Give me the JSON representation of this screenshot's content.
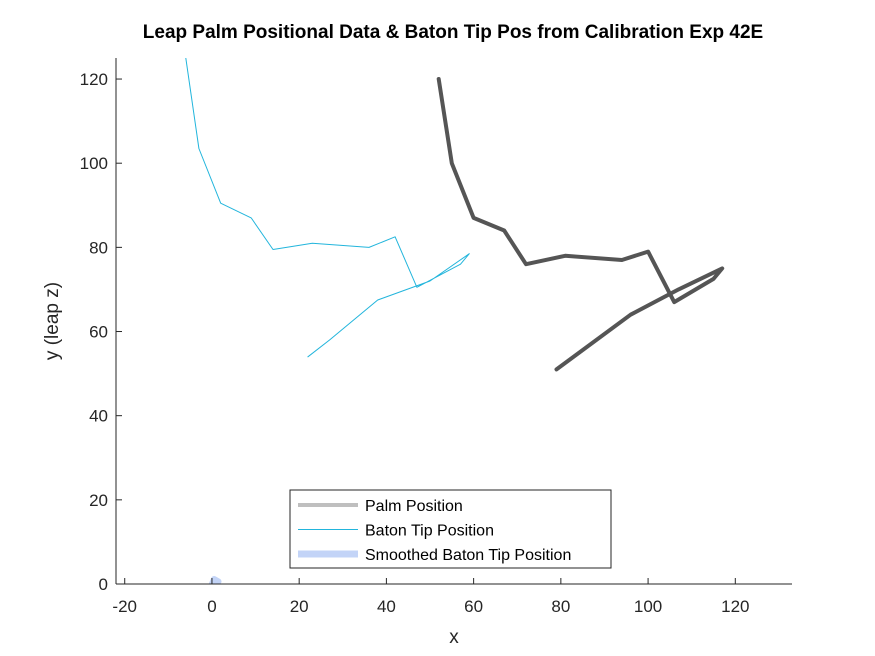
{
  "chart_data": {
    "type": "line",
    "title": "Leap Palm Positional Data & Baton Tip Pos from Calibration Exp 42E",
    "xlabel": "x",
    "ylabel": "y (leap z)",
    "xlim": [
      -22,
      133
    ],
    "ylim": [
      0,
      125
    ],
    "xticks": [
      -20,
      0,
      20,
      40,
      60,
      80,
      100,
      120
    ],
    "yticks": [
      0,
      20,
      40,
      60,
      80,
      100,
      120
    ],
    "grid": false,
    "legend_position": "bottom-center",
    "series": [
      {
        "name": "Palm Position",
        "legend_color": "#bfbfbf",
        "color": "#555555",
        "x": [
          52,
          55,
          60,
          67,
          72,
          81,
          94,
          100,
          106,
          115,
          117,
          107,
          96,
          79
        ],
        "y": [
          120,
          100,
          87,
          84,
          76,
          78,
          77,
          79,
          67,
          72.5,
          75,
          70,
          64,
          51
        ]
      },
      {
        "name": "Baton Tip Position",
        "legend_color": "#22b5dc",
        "color": "#22b5dc",
        "x": [
          -6,
          -3,
          2,
          9,
          14,
          23,
          36,
          42,
          47,
          57,
          59,
          50,
          38,
          27,
          22
        ],
        "y": [
          125,
          103.5,
          90.5,
          87,
          79.5,
          81,
          80,
          82.5,
          70.5,
          76,
          78.5,
          72,
          67.5,
          58,
          54
        ]
      },
      {
        "name": "Smoothed Baton Tip Position",
        "legend_color": "#c3d4f7",
        "color": "#c3d4f7",
        "x": [
          0,
          0.5,
          1.5
        ],
        "y": [
          0,
          1.2,
          0.6
        ]
      }
    ]
  }
}
